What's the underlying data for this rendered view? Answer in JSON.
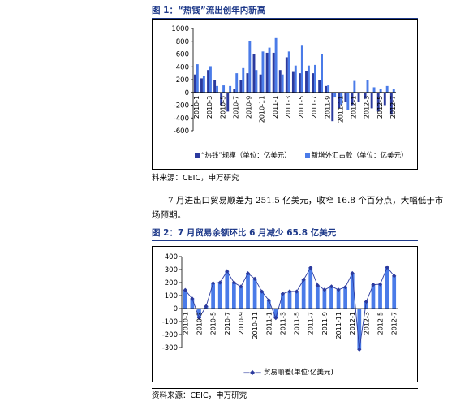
{
  "colors": {
    "accent": "#1f3a8a",
    "series_dark": "#2b3a9e",
    "series_light": "#4a7be8"
  },
  "figure1": {
    "title": "图 1：“热钱”流出创年内新高",
    "legend_hot_money": "“热钱”规模（单位：亿美元）",
    "legend_fx_reserve": "新增外汇占款（单位：亿美元）",
    "source": "料来源：CEIC，申万研究"
  },
  "paragraph": {
    "line1": "7 月进出口贸易顺差为 251.5 亿美元，收窄 16.8 个百分点，大幅低于市",
    "line2": "场预期。"
  },
  "figure2": {
    "title": "图 2：7 月贸易余额环比 6 月减少 65.8 亿美元",
    "legend": "贸易顺差(单位:亿美元)",
    "source": "资料来源：CEIC，申万研究"
  },
  "chart_data": [
    {
      "type": "bar",
      "ylim": [
        -600,
        1000
      ],
      "yticks": [
        -600,
        -400,
        -200,
        0,
        200,
        400,
        600,
        800,
        1000
      ],
      "x_tick_labels": [
        "2010-1",
        "2010-3",
        "2010-5",
        "2010-7",
        "2010-9",
        "2010-11",
        "2011-1",
        "2011-3",
        "2011-5",
        "2011-7",
        "2011-9",
        "2011-11",
        "2012-1",
        "2012-3",
        "2012-5",
        "2012-7"
      ],
      "categories": [
        "2010-1",
        "2010-2",
        "2010-3",
        "2010-4",
        "2010-5",
        "2010-6",
        "2010-7",
        "2010-8",
        "2010-9",
        "2010-10",
        "2010-11",
        "2010-12",
        "2011-1",
        "2011-2",
        "2011-3",
        "2011-4",
        "2011-5",
        "2011-6",
        "2011-7",
        "2011-8",
        "2011-9",
        "2011-10",
        "2011-11",
        "2011-12",
        "2012-1",
        "2012-2",
        "2012-3",
        "2012-4",
        "2012-5",
        "2012-6",
        "2012-7"
      ],
      "series": [
        {
          "name": "“热钱”规模（单位：亿美元）",
          "values": [
            280,
            220,
            350,
            200,
            -200,
            -300,
            50,
            200,
            300,
            600,
            280,
            620,
            620,
            350,
            550,
            320,
            300,
            330,
            300,
            200,
            100,
            -450,
            -250,
            -150,
            -200,
            -150,
            -100,
            -250,
            -300,
            -200,
            -350
          ]
        },
        {
          "name": "新增外汇占款（单位：亿美元）",
          "values": [
            440,
            260,
            410,
            100,
            110,
            100,
            300,
            380,
            800,
            350,
            640,
            700,
            850,
            280,
            640,
            420,
            730,
            420,
            430,
            600,
            110,
            -80,
            -190,
            -280,
            180,
            -10,
            200,
            80,
            50,
            100,
            50
          ]
        }
      ]
    },
    {
      "type": "bar",
      "ylim": [
        -300,
        400
      ],
      "yticks": [
        -300,
        -200,
        -100,
        0,
        100,
        200,
        300,
        400
      ],
      "x_tick_labels": [
        "2010-1",
        "2010-3",
        "2010-5",
        "2010-7",
        "2010-9",
        "2010-11",
        "2011-1",
        "2011-3",
        "2011-5",
        "2011-7",
        "2011-9",
        "2011-11",
        "2012-1",
        "2012-3",
        "2012-5",
        "2012-7"
      ],
      "categories": [
        "2010-1",
        "2010-2",
        "2010-3",
        "2010-4",
        "2010-5",
        "2010-6",
        "2010-7",
        "2010-8",
        "2010-9",
        "2010-10",
        "2010-11",
        "2010-12",
        "2011-1",
        "2011-2",
        "2011-3",
        "2011-4",
        "2011-5",
        "2011-6",
        "2011-7",
        "2011-8",
        "2011-9",
        "2011-10",
        "2011-11",
        "2011-12",
        "2012-1",
        "2012-2",
        "2012-3",
        "2012-4",
        "2012-5",
        "2012-6",
        "2012-7"
      ],
      "series": [
        {
          "name": "贸易顺差(单位:亿美元)",
          "values": [
            142,
            76,
            -72,
            17,
            195,
            200,
            287,
            200,
            169,
            271,
            229,
            131,
            64,
            -73,
            114,
            132,
            131,
            222,
            314,
            179,
            145,
            170,
            145,
            165,
            272,
            -315,
            53,
            184,
            187,
            317,
            251.5
          ]
        }
      ]
    }
  ]
}
